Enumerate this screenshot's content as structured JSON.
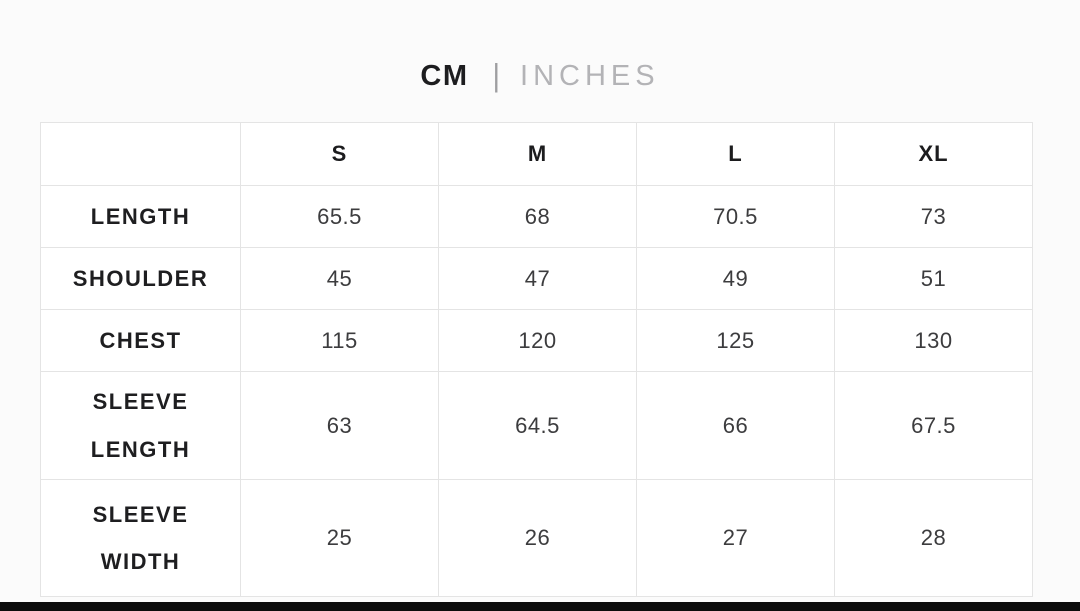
{
  "unit_toggle": {
    "cm_label": "CM",
    "divider": "|",
    "inches_label": "INCHES",
    "active_unit": "CM",
    "active_color": "#1d1d1f",
    "inactive_color": "#b3b3b6"
  },
  "size_chart": {
    "columns": [
      "S",
      "M",
      "L",
      "XL"
    ],
    "rows": [
      {
        "label": "LENGTH",
        "values": [
          "65.5",
          "68",
          "70.5",
          "73"
        ]
      },
      {
        "label": "SHOULDER",
        "values": [
          "45",
          "47",
          "49",
          "51"
        ]
      },
      {
        "label": "CHEST",
        "values": [
          "115",
          "120",
          "125",
          "130"
        ]
      },
      {
        "label": "SLEEVE LENGTH",
        "values": [
          "63",
          "64.5",
          "66",
          "67.5"
        ]
      },
      {
        "label": "SLEEVE WIDTH",
        "values": [
          "25",
          "26",
          "27",
          "28"
        ]
      }
    ],
    "border_color": "#e4e4e4",
    "label_color": "#1e1e20",
    "value_color": "#3c3c3e"
  },
  "page": {
    "background": "#fbfbfb",
    "bottom_bar_color": "#0c0c0c"
  }
}
